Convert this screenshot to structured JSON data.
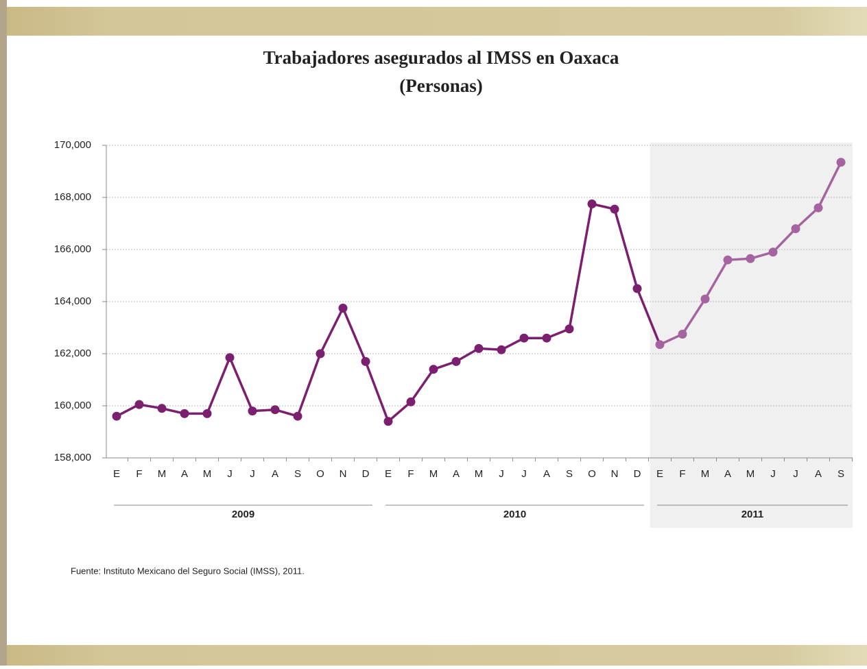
{
  "chart_data": {
    "type": "line",
    "title": "Trabajadores asegurados al IMSS en Oaxaca",
    "subtitle": "(Personas)",
    "source": "Fuente: Instituto Mexicano del Seguro Social (IMSS), 2011.",
    "ylim": [
      158000,
      170000
    ],
    "yticks": [
      {
        "value": 158000,
        "label": "158,000"
      },
      {
        "value": 160000,
        "label": "160,000"
      },
      {
        "value": 162000,
        "label": "162,000"
      },
      {
        "value": 164000,
        "label": "164,000"
      },
      {
        "value": 166000,
        "label": "166,000"
      },
      {
        "value": 168000,
        "label": "168,000"
      },
      {
        "value": 170000,
        "label": "170,000"
      }
    ],
    "grid": true,
    "groups": [
      {
        "label": "2009",
        "color": "#7b1f6f",
        "shaded": false,
        "categories": [
          "E",
          "F",
          "M",
          "A",
          "M",
          "J",
          "J",
          "A",
          "S",
          "O",
          "N",
          "D"
        ],
        "values": [
          159600,
          160050,
          159900,
          159700,
          159700,
          161850,
          159800,
          159850,
          159600,
          162000,
          163750,
          161700
        ]
      },
      {
        "label": "2010",
        "color": "#7b1f6f",
        "shaded": false,
        "categories": [
          "E",
          "F",
          "M",
          "A",
          "M",
          "J",
          "J",
          "A",
          "S",
          "O",
          "N",
          "D"
        ],
        "values": [
          159400,
          160150,
          161400,
          161700,
          162200,
          162150,
          162600,
          162600,
          162950,
          167750,
          167550,
          164500
        ]
      },
      {
        "label": "2011",
        "color": "#a5649f",
        "shaded": true,
        "categories": [
          "E",
          "F",
          "M",
          "A",
          "M",
          "J",
          "J",
          "A",
          "S"
        ],
        "values": [
          162350,
          162750,
          164100,
          165600,
          165650,
          165900,
          166800,
          167600,
          169350
        ]
      }
    ]
  }
}
